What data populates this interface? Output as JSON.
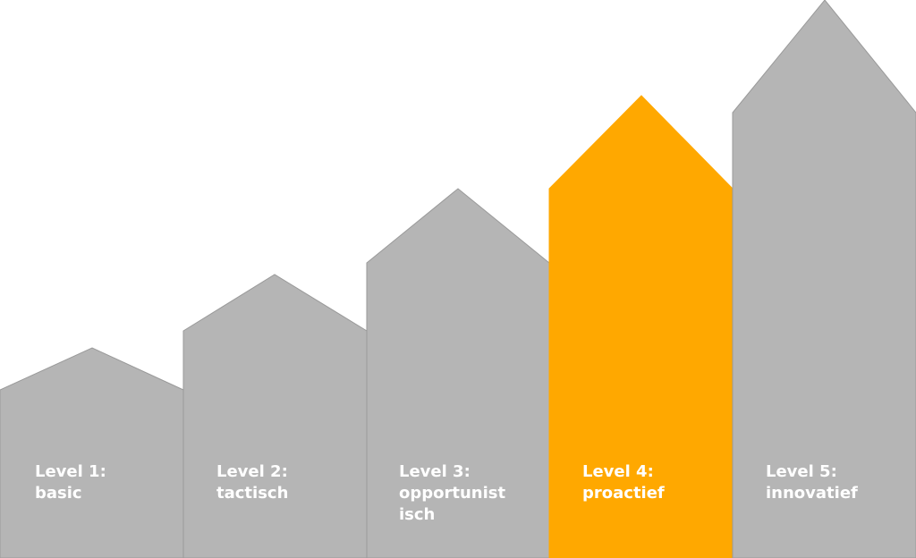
{
  "levels": [
    {
      "label": "Level 1:\nbasic",
      "highlighted": false
    },
    {
      "label": "Level 2:\ntactisch",
      "highlighted": false
    },
    {
      "label": "Level 3:\nopportunist\nisch",
      "highlighted": false
    },
    {
      "label": "Level 4:\nproactief",
      "highlighted": true
    },
    {
      "label": "Level 5:\ninnovatief",
      "highlighted": false
    }
  ],
  "colors": {
    "default": "#b5b5b5",
    "highlight": "#ffa800",
    "stroke": "#9a9a9a",
    "text": "#ffffff"
  }
}
